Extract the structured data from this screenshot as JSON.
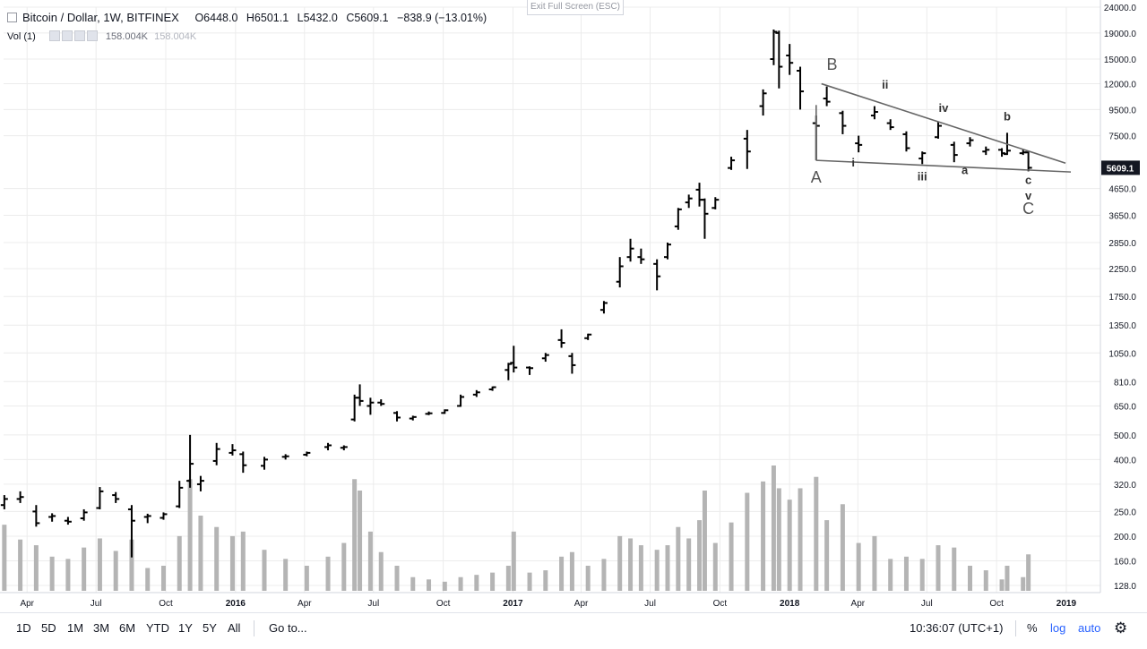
{
  "header": {
    "exit_fullscreen": "Exit Full Screen (ESC)",
    "symbol": "Bitcoin / Dollar, 1W, BITFINEX",
    "open": "O6448.0",
    "high": "H6501.1",
    "low": "L5432.0",
    "close": "C5609.1",
    "change": "−838.9 (−13.01%)",
    "volume_label": "Vol (1)",
    "volume_value_1": "158.004K",
    "volume_value_2": "158.004K"
  },
  "toolbar": {
    "ranges": [
      "1D",
      "5D",
      "1M",
      "3M",
      "6M",
      "YTD",
      "1Y",
      "5Y",
      "All"
    ],
    "goto": "Go to...",
    "clock": "10:36:07 (UTC+1)",
    "percent": "%",
    "log": "log",
    "auto": "auto"
  },
  "colors": {
    "bars": "#000000",
    "volume": "#b4b4b4",
    "grid": "#ececec",
    "trendline": "#666666",
    "price_tag": "#131722"
  },
  "chart_data": {
    "type": "ohlc",
    "scale": "log",
    "interval": "1W",
    "x_range": [
      "2015-03-01",
      "2019-02-15"
    ],
    "y_range": [
      120,
      24000
    ],
    "grid": true,
    "last_price": 5609.1,
    "last_price_label": "5609.1",
    "y_ticks": [
      24000,
      19000,
      15000,
      12000,
      9500,
      7500,
      5609.1,
      4650,
      3650,
      2850,
      2250,
      1750,
      1350,
      1050,
      810,
      650,
      500,
      400,
      320,
      250,
      200,
      160,
      128
    ],
    "y_tick_labels": [
      "24000.0",
      "19000.0",
      "15000.0",
      "12000.0",
      "9500.0",
      "7500.0",
      "",
      "4650.0",
      "3650.0",
      "2850.0",
      "2250.0",
      "1750.0",
      "1350.0",
      "1050.0",
      "810.0",
      "650.0",
      "500.0",
      "400.0",
      "320.0",
      "250.0",
      "200.0",
      "160.0",
      "128.0"
    ],
    "x_ticks": [
      {
        "label": "Apr",
        "date": "2015-04-01"
      },
      {
        "label": "Jul",
        "date": "2015-07-01"
      },
      {
        "label": "Oct",
        "date": "2015-10-01"
      },
      {
        "label": "2016",
        "date": "2016-01-01"
      },
      {
        "label": "Apr",
        "date": "2016-04-01"
      },
      {
        "label": "Jul",
        "date": "2016-07-01"
      },
      {
        "label": "Oct",
        "date": "2016-10-01"
      },
      {
        "label": "2017",
        "date": "2017-01-01"
      },
      {
        "label": "Apr",
        "date": "2017-04-01"
      },
      {
        "label": "Jul",
        "date": "2017-07-01"
      },
      {
        "label": "Oct",
        "date": "2017-10-01"
      },
      {
        "label": "2018",
        "date": "2018-01-01"
      },
      {
        "label": "Apr",
        "date": "2018-04-01"
      },
      {
        "label": "Jul",
        "date": "2018-07-01"
      },
      {
        "label": "Oct",
        "date": "2018-10-01"
      },
      {
        "label": "2019",
        "date": "2019-01-01"
      }
    ],
    "bars": [
      {
        "date": "2015-03-02",
        "o": 265,
        "h": 290,
        "l": 255,
        "c": 280
      },
      {
        "date": "2015-03-23",
        "o": 280,
        "h": 300,
        "l": 270,
        "c": 285
      },
      {
        "date": "2015-04-13",
        "o": 250,
        "h": 265,
        "l": 218,
        "c": 225
      },
      {
        "date": "2015-05-04",
        "o": 238,
        "h": 246,
        "l": 228,
        "c": 240
      },
      {
        "date": "2015-05-25",
        "o": 230,
        "h": 238,
        "l": 222,
        "c": 228
      },
      {
        "date": "2015-06-15",
        "o": 235,
        "h": 255,
        "l": 230,
        "c": 248
      },
      {
        "date": "2015-07-06",
        "o": 258,
        "h": 312,
        "l": 255,
        "c": 300
      },
      {
        "date": "2015-07-27",
        "o": 290,
        "h": 298,
        "l": 270,
        "c": 280
      },
      {
        "date": "2015-08-17",
        "o": 255,
        "h": 265,
        "l": 165,
        "c": 230
      },
      {
        "date": "2015-09-07",
        "o": 238,
        "h": 245,
        "l": 225,
        "c": 240
      },
      {
        "date": "2015-09-28",
        "o": 236,
        "h": 248,
        "l": 232,
        "c": 244
      },
      {
        "date": "2015-10-19",
        "o": 262,
        "h": 330,
        "l": 258,
        "c": 310
      },
      {
        "date": "2015-11-02",
        "o": 330,
        "h": 500,
        "l": 310,
        "c": 385
      },
      {
        "date": "2015-11-16",
        "o": 320,
        "h": 345,
        "l": 300,
        "c": 330
      },
      {
        "date": "2015-12-07",
        "o": 395,
        "h": 465,
        "l": 380,
        "c": 440
      },
      {
        "date": "2015-12-28",
        "o": 425,
        "h": 460,
        "l": 415,
        "c": 435
      },
      {
        "date": "2016-01-11",
        "o": 420,
        "h": 430,
        "l": 355,
        "c": 380
      },
      {
        "date": "2016-02-08",
        "o": 378,
        "h": 410,
        "l": 365,
        "c": 400
      },
      {
        "date": "2016-03-07",
        "o": 410,
        "h": 420,
        "l": 400,
        "c": 412
      },
      {
        "date": "2016-04-04",
        "o": 418,
        "h": 430,
        "l": 412,
        "c": 425
      },
      {
        "date": "2016-05-02",
        "o": 448,
        "h": 465,
        "l": 435,
        "c": 455
      },
      {
        "date": "2016-05-23",
        "o": 445,
        "h": 455,
        "l": 435,
        "c": 448
      },
      {
        "date": "2016-06-06",
        "o": 575,
        "h": 720,
        "l": 565,
        "c": 700
      },
      {
        "date": "2016-06-13",
        "o": 700,
        "h": 790,
        "l": 650,
        "c": 680
      },
      {
        "date": "2016-06-27",
        "o": 650,
        "h": 700,
        "l": 600,
        "c": 670
      },
      {
        "date": "2016-07-11",
        "o": 670,
        "h": 690,
        "l": 650,
        "c": 662
      },
      {
        "date": "2016-08-01",
        "o": 610,
        "h": 620,
        "l": 565,
        "c": 585
      },
      {
        "date": "2016-08-22",
        "o": 580,
        "h": 595,
        "l": 570,
        "c": 588
      },
      {
        "date": "2016-09-12",
        "o": 605,
        "h": 618,
        "l": 598,
        "c": 608
      },
      {
        "date": "2016-10-03",
        "o": 610,
        "h": 630,
        "l": 605,
        "c": 625
      },
      {
        "date": "2016-10-24",
        "o": 650,
        "h": 720,
        "l": 645,
        "c": 705
      },
      {
        "date": "2016-11-14",
        "o": 720,
        "h": 750,
        "l": 705,
        "c": 735
      },
      {
        "date": "2016-12-05",
        "o": 755,
        "h": 775,
        "l": 745,
        "c": 770
      },
      {
        "date": "2016-12-26",
        "o": 900,
        "h": 960,
        "l": 820,
        "c": 950
      },
      {
        "date": "2017-01-02",
        "o": 960,
        "h": 1120,
        "l": 880,
        "c": 920
      },
      {
        "date": "2017-01-23",
        "o": 920,
        "h": 930,
        "l": 860,
        "c": 915
      },
      {
        "date": "2017-02-13",
        "o": 1000,
        "h": 1050,
        "l": 970,
        "c": 1030
      },
      {
        "date": "2017-03-06",
        "o": 1180,
        "h": 1300,
        "l": 1100,
        "c": 1150
      },
      {
        "date": "2017-03-20",
        "o": 1020,
        "h": 1050,
        "l": 870,
        "c": 940
      },
      {
        "date": "2017-04-10",
        "o": 1200,
        "h": 1250,
        "l": 1180,
        "c": 1240
      },
      {
        "date": "2017-05-01",
        "o": 1550,
        "h": 1680,
        "l": 1500,
        "c": 1650
      },
      {
        "date": "2017-05-22",
        "o": 2000,
        "h": 2500,
        "l": 1900,
        "c": 2300
      },
      {
        "date": "2017-06-05",
        "o": 2500,
        "h": 2950,
        "l": 2400,
        "c": 2700
      },
      {
        "date": "2017-06-19",
        "o": 2500,
        "h": 2700,
        "l": 2350,
        "c": 2450
      },
      {
        "date": "2017-07-10",
        "o": 2350,
        "h": 2450,
        "l": 1850,
        "c": 2100
      },
      {
        "date": "2017-07-24",
        "o": 2500,
        "h": 2850,
        "l": 2450,
        "c": 2800
      },
      {
        "date": "2017-08-07",
        "o": 3300,
        "h": 3900,
        "l": 3200,
        "c": 3850
      },
      {
        "date": "2017-08-21",
        "o": 4100,
        "h": 4400,
        "l": 3900,
        "c": 4250
      },
      {
        "date": "2017-09-04",
        "o": 4600,
        "h": 4900,
        "l": 3950,
        "c": 4200
      },
      {
        "date": "2017-09-11",
        "o": 4200,
        "h": 4250,
        "l": 2950,
        "c": 3700
      },
      {
        "date": "2017-09-25",
        "o": 3900,
        "h": 4300,
        "l": 3850,
        "c": 4200
      },
      {
        "date": "2017-10-16",
        "o": 5600,
        "h": 6200,
        "l": 5500,
        "c": 6000
      },
      {
        "date": "2017-11-06",
        "o": 7300,
        "h": 7900,
        "l": 5550,
        "c": 6500
      },
      {
        "date": "2017-11-27",
        "o": 9800,
        "h": 11400,
        "l": 9000,
        "c": 11000
      },
      {
        "date": "2017-12-11",
        "o": 15000,
        "h": 19600,
        "l": 14200,
        "c": 19200
      },
      {
        "date": "2017-12-18",
        "o": 19000,
        "h": 19400,
        "l": 11500,
        "c": 14000
      },
      {
        "date": "2018-01-01",
        "o": 15500,
        "h": 17200,
        "l": 13000,
        "c": 14500
      },
      {
        "date": "2018-01-15",
        "o": 13500,
        "h": 14000,
        "l": 9500,
        "c": 11200
      },
      {
        "date": "2018-02-05",
        "o": 8400,
        "h": 9000,
        "l": 6000,
        "c": 8200
      },
      {
        "date": "2018-02-19",
        "o": 10500,
        "h": 11700,
        "l": 9800,
        "c": 10200
      },
      {
        "date": "2018-03-12",
        "o": 9200,
        "h": 9400,
        "l": 7600,
        "c": 8200
      },
      {
        "date": "2018-04-02",
        "o": 7000,
        "h": 7500,
        "l": 6450,
        "c": 6900
      },
      {
        "date": "2018-04-23",
        "o": 9000,
        "h": 9800,
        "l": 8700,
        "c": 9300
      },
      {
        "date": "2018-05-14",
        "o": 8400,
        "h": 8700,
        "l": 7900,
        "c": 8100
      },
      {
        "date": "2018-06-04",
        "o": 7600,
        "h": 7800,
        "l": 6500,
        "c": 6700
      },
      {
        "date": "2018-06-25",
        "o": 6100,
        "h": 6500,
        "l": 5800,
        "c": 6400
      },
      {
        "date": "2018-07-16",
        "o": 7400,
        "h": 8500,
        "l": 7300,
        "c": 8200
      },
      {
        "date": "2018-08-06",
        "o": 6900,
        "h": 7100,
        "l": 5900,
        "c": 6300
      },
      {
        "date": "2018-08-27",
        "o": 7000,
        "h": 7400,
        "l": 6800,
        "c": 7200
      },
      {
        "date": "2018-09-17",
        "o": 6500,
        "h": 6800,
        "l": 6300,
        "c": 6600
      },
      {
        "date": "2018-10-08",
        "o": 6600,
        "h": 6700,
        "l": 6200,
        "c": 6400
      },
      {
        "date": "2018-10-15",
        "o": 6350,
        "h": 7700,
        "l": 6300,
        "c": 6550
      },
      {
        "date": "2018-11-05",
        "o": 6400,
        "h": 6600,
        "l": 6300,
        "c": 6448
      },
      {
        "date": "2018-11-12",
        "o": 6448,
        "h": 6501.1,
        "l": 5432,
        "c": 5609.1
      }
    ],
    "volume": [
      {
        "date": "2015-03-02",
        "v": 58
      },
      {
        "date": "2015-03-23",
        "v": 45
      },
      {
        "date": "2015-04-13",
        "v": 40
      },
      {
        "date": "2015-05-04",
        "v": 30
      },
      {
        "date": "2015-05-25",
        "v": 28
      },
      {
        "date": "2015-06-15",
        "v": 38
      },
      {
        "date": "2015-07-06",
        "v": 46
      },
      {
        "date": "2015-07-27",
        "v": 35
      },
      {
        "date": "2015-08-17",
        "v": 45
      },
      {
        "date": "2015-09-07",
        "v": 20
      },
      {
        "date": "2015-09-28",
        "v": 22
      },
      {
        "date": "2015-10-19",
        "v": 48
      },
      {
        "date": "2015-11-02",
        "v": 98
      },
      {
        "date": "2015-11-16",
        "v": 66
      },
      {
        "date": "2015-12-07",
        "v": 56
      },
      {
        "date": "2015-12-28",
        "v": 48
      },
      {
        "date": "2016-01-11",
        "v": 52
      },
      {
        "date": "2016-02-08",
        "v": 36
      },
      {
        "date": "2016-03-07",
        "v": 28
      },
      {
        "date": "2016-04-04",
        "v": 22
      },
      {
        "date": "2016-05-02",
        "v": 30
      },
      {
        "date": "2016-05-23",
        "v": 42
      },
      {
        "date": "2016-06-06",
        "v": 98
      },
      {
        "date": "2016-06-13",
        "v": 88
      },
      {
        "date": "2016-06-27",
        "v": 52
      },
      {
        "date": "2016-07-11",
        "v": 34
      },
      {
        "date": "2016-08-01",
        "v": 22
      },
      {
        "date": "2016-08-22",
        "v": 12
      },
      {
        "date": "2016-09-12",
        "v": 10
      },
      {
        "date": "2016-10-03",
        "v": 8
      },
      {
        "date": "2016-10-24",
        "v": 12
      },
      {
        "date": "2016-11-14",
        "v": 14
      },
      {
        "date": "2016-12-05",
        "v": 16
      },
      {
        "date": "2016-12-26",
        "v": 22
      },
      {
        "date": "2017-01-02",
        "v": 52
      },
      {
        "date": "2017-01-23",
        "v": 16
      },
      {
        "date": "2017-02-13",
        "v": 18
      },
      {
        "date": "2017-03-06",
        "v": 30
      },
      {
        "date": "2017-03-20",
        "v": 34
      },
      {
        "date": "2017-04-10",
        "v": 22
      },
      {
        "date": "2017-05-01",
        "v": 28
      },
      {
        "date": "2017-05-22",
        "v": 48
      },
      {
        "date": "2017-06-05",
        "v": 46
      },
      {
        "date": "2017-06-19",
        "v": 40
      },
      {
        "date": "2017-07-10",
        "v": 36
      },
      {
        "date": "2017-07-24",
        "v": 40
      },
      {
        "date": "2017-08-07",
        "v": 56
      },
      {
        "date": "2017-08-21",
        "v": 46
      },
      {
        "date": "2017-09-04",
        "v": 62
      },
      {
        "date": "2017-09-11",
        "v": 88
      },
      {
        "date": "2017-09-25",
        "v": 42
      },
      {
        "date": "2017-10-16",
        "v": 60
      },
      {
        "date": "2017-11-06",
        "v": 86
      },
      {
        "date": "2017-11-27",
        "v": 96
      },
      {
        "date": "2017-12-11",
        "v": 110
      },
      {
        "date": "2017-12-18",
        "v": 90
      },
      {
        "date": "2018-01-01",
        "v": 80
      },
      {
        "date": "2018-01-15",
        "v": 90
      },
      {
        "date": "2018-02-05",
        "v": 100
      },
      {
        "date": "2018-02-19",
        "v": 62
      },
      {
        "date": "2018-03-12",
        "v": 76
      },
      {
        "date": "2018-04-02",
        "v": 42
      },
      {
        "date": "2018-04-23",
        "v": 48
      },
      {
        "date": "2018-05-14",
        "v": 28
      },
      {
        "date": "2018-06-04",
        "v": 30
      },
      {
        "date": "2018-06-25",
        "v": 28
      },
      {
        "date": "2018-07-16",
        "v": 40
      },
      {
        "date": "2018-08-06",
        "v": 38
      },
      {
        "date": "2018-08-27",
        "v": 22
      },
      {
        "date": "2018-09-17",
        "v": 18
      },
      {
        "date": "2018-10-08",
        "v": 10
      },
      {
        "date": "2018-10-15",
        "v": 22
      },
      {
        "date": "2018-11-05",
        "v": 12
      },
      {
        "date": "2018-11-12",
        "v": 32
      }
    ],
    "trendlines": [
      {
        "name": "upper",
        "from": {
          "date": "2018-02-12",
          "price": 12000
        },
        "to": {
          "date": "2018-12-31",
          "price": 5850
        }
      },
      {
        "name": "lower",
        "from": {
          "date": "2018-02-05",
          "price": 6000
        },
        "to": {
          "date": "2019-01-07",
          "price": 5400
        }
      },
      {
        "name": "a-vertical",
        "from": {
          "date": "2018-02-05",
          "price": 6000
        },
        "to": {
          "date": "2018-02-05",
          "price": 9900
        }
      }
    ],
    "annotations": [
      {
        "text": "B",
        "date": "2018-02-26",
        "price": 13600,
        "size": "large"
      },
      {
        "text": "A",
        "date": "2018-02-05",
        "price": 4900,
        "size": "large"
      },
      {
        "text": "i",
        "date": "2018-03-26",
        "price": 5680,
        "size": "small"
      },
      {
        "text": "ii",
        "date": "2018-05-07",
        "price": 11500,
        "size": "small"
      },
      {
        "text": "iii",
        "date": "2018-06-25",
        "price": 5000,
        "size": "small"
      },
      {
        "text": "iv",
        "date": "2018-07-23",
        "price": 9300,
        "size": "small"
      },
      {
        "text": "a",
        "date": "2018-08-20",
        "price": 5300,
        "size": "small"
      },
      {
        "text": "b",
        "date": "2018-10-15",
        "price": 8600,
        "size": "small"
      },
      {
        "text": "c",
        "date": "2018-11-12",
        "price": 4850,
        "size": "small"
      },
      {
        "text": "v",
        "date": "2018-11-12",
        "price": 4200,
        "size": "small"
      },
      {
        "text": "C",
        "date": "2018-11-12",
        "price": 3700,
        "size": "large"
      }
    ]
  }
}
